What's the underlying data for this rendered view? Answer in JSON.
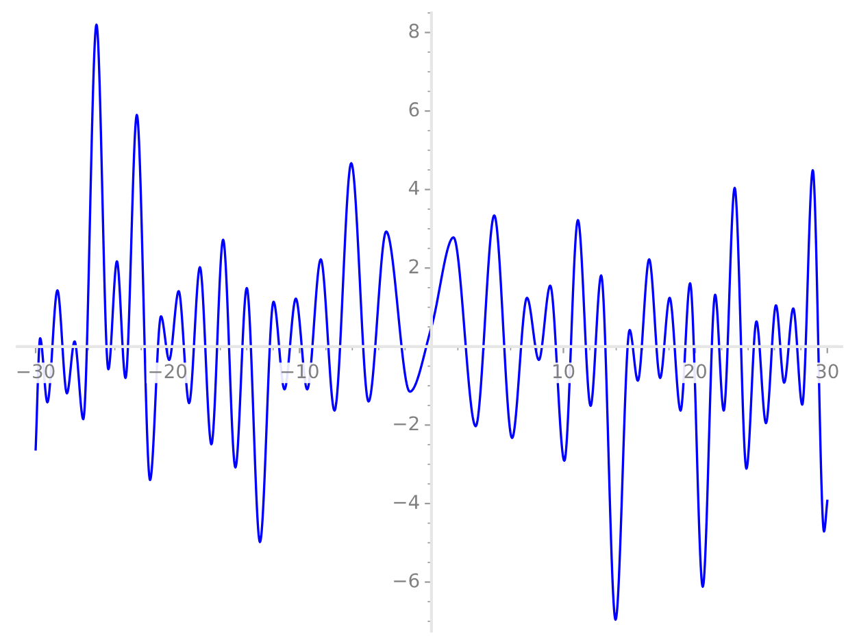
{
  "chart_data": {
    "type": "line",
    "xlim": [
      -31.4,
      31.1
    ],
    "ylim": [
      -7.25,
      8.5
    ],
    "xticks": [
      -30,
      -20,
      -10,
      10,
      20,
      30
    ],
    "yticks": [
      -6,
      -4,
      -2,
      2,
      4,
      6,
      8
    ],
    "grid": false,
    "marker": "none",
    "line_style": "solid",
    "series": [
      {
        "color": "#0000ff",
        "x": [
          -30.0,
          -29.66,
          -29.11,
          -28.35,
          -27.63,
          -27.05,
          -26.39,
          -25.39,
          -24.49,
          -23.84,
          -23.19,
          -22.33,
          -21.33,
          -20.5,
          -19.88,
          -19.16,
          -18.37,
          -17.55,
          -16.68,
          -15.79,
          -14.86,
          -14.0,
          -13.0,
          -11.97,
          -11.14,
          -10.28,
          -9.42,
          -8.39,
          -7.35,
          -6.08,
          -4.77,
          -3.43,
          -1.64,
          0.0,
          1.67,
          3.35,
          4.76,
          6.11,
          7.24,
          8.14,
          9.0,
          10.07,
          11.1,
          12.06,
          12.86,
          13.95,
          15.02,
          15.64,
          16.5,
          17.33,
          18.05,
          18.88,
          19.6,
          20.56,
          21.5,
          22.15,
          22.98,
          23.87,
          24.63,
          25.35,
          26.11,
          26.73,
          27.42,
          28.1,
          28.9,
          29.75,
          30.0
        ],
        "values": [
          -2.62,
          0.21,
          -1.42,
          1.43,
          -1.19,
          0.13,
          -1.85,
          8.2,
          -0.58,
          2.17,
          -0.8,
          5.9,
          -3.4,
          0.77,
          -0.34,
          1.41,
          -1.44,
          2.02,
          -2.49,
          2.72,
          -3.08,
          1.49,
          -4.98,
          1.14,
          -1.09,
          1.22,
          -1.09,
          2.22,
          -1.63,
          4.67,
          -1.4,
          2.93,
          -1.15,
          0.5,
          2.78,
          -2.03,
          3.34,
          -2.33,
          1.24,
          -0.34,
          1.55,
          -2.91,
          3.22,
          -1.51,
          1.81,
          -6.96,
          0.42,
          -0.87,
          2.22,
          -0.8,
          1.24,
          -1.63,
          1.61,
          -6.12,
          1.32,
          -1.63,
          4.04,
          -3.11,
          0.64,
          -1.95,
          1.05,
          -0.92,
          0.97,
          -1.48,
          4.49,
          -4.71,
          -3.93
        ]
      }
    ]
  }
}
